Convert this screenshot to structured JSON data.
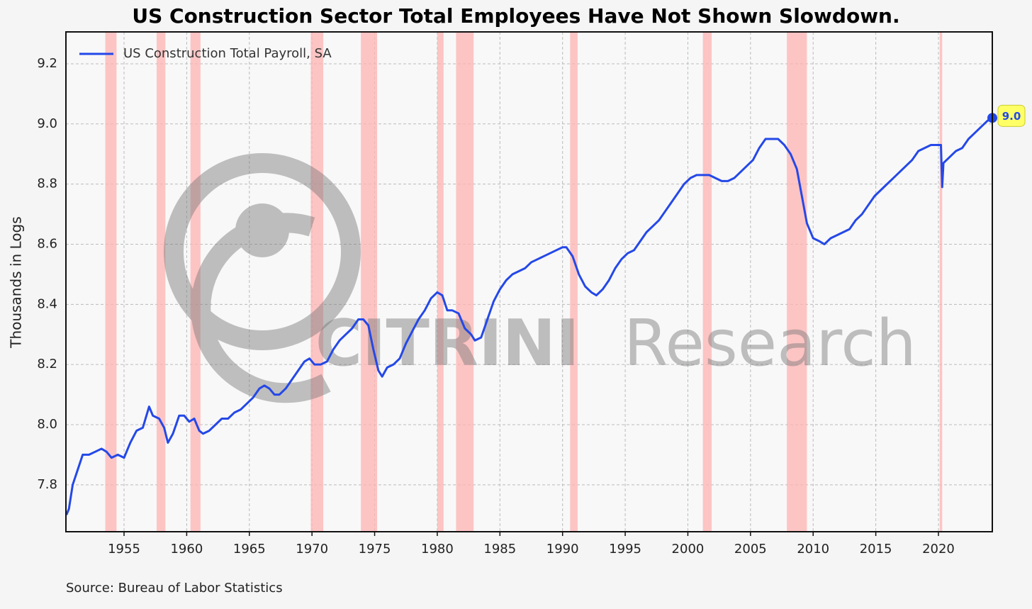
{
  "chart_data": {
    "type": "line",
    "title": "US Construction Sector Total Employees Have Not Shown Slowdown.",
    "ylabel": "Thousands in Logs",
    "source": "Source: Bureau of Labor Statistics",
    "watermark": {
      "bold": "CITRINI",
      "light": "Research"
    },
    "xlim": [
      1950.36,
      2024.3
    ],
    "ylim": [
      7.644,
      9.306
    ],
    "xticks": [
      1955,
      1960,
      1965,
      1970,
      1975,
      1980,
      1985,
      1990,
      1995,
      2000,
      2005,
      2010,
      2015,
      2020
    ],
    "yticks": [
      7.8,
      {
        "value": 8,
        "label": "8.0"
      },
      8.2,
      8.4,
      8.6,
      8.8,
      {
        "value": 9,
        "label": "9.0"
      },
      9.2
    ],
    "grid": true,
    "legend": "upper left",
    "recession_color": "#ffb3b3",
    "recessions": [
      [
        1953.5,
        1954.4
      ],
      [
        1957.6,
        1958.3
      ],
      [
        1960.3,
        1961.1
      ],
      [
        1969.9,
        1970.9
      ],
      [
        1973.9,
        1975.2
      ],
      [
        1980.0,
        1980.5
      ],
      [
        1981.5,
        1982.9
      ],
      [
        1990.6,
        1991.2
      ],
      [
        2001.2,
        2001.9
      ],
      [
        2007.9,
        2009.5
      ],
      [
        2020.1,
        2020.3
      ]
    ],
    "x": [
      1950.4,
      1950.6,
      1950.9,
      1951.3,
      1951.7,
      1952.2,
      1952.7,
      1953.2,
      1953.6,
      1954.0,
      1954.5,
      1955.0,
      1955.5,
      1956.0,
      1956.5,
      1957.0,
      1957.3,
      1957.8,
      1958.2,
      1958.5,
      1958.9,
      1959.4,
      1959.8,
      1960.2,
      1960.6,
      1961.0,
      1961.3,
      1961.8,
      1962.3,
      1962.8,
      1963.3,
      1963.8,
      1964.3,
      1964.8,
      1965.3,
      1965.8,
      1966.2,
      1966.6,
      1967.0,
      1967.4,
      1967.9,
      1968.4,
      1968.9,
      1969.4,
      1969.8,
      1970.2,
      1970.7,
      1971.2,
      1971.7,
      1972.2,
      1972.7,
      1973.2,
      1973.7,
      1974.1,
      1974.5,
      1974.9,
      1975.3,
      1975.6,
      1976.0,
      1976.5,
      1977.0,
      1977.5,
      1978.0,
      1978.5,
      1979.0,
      1979.5,
      1980.0,
      1980.4,
      1980.8,
      1981.2,
      1981.7,
      1982.2,
      1982.7,
      1983.0,
      1983.5,
      1984.0,
      1984.5,
      1985.0,
      1985.5,
      1986.0,
      1986.5,
      1987.0,
      1987.5,
      1988.0,
      1988.5,
      1989.0,
      1989.5,
      1990.0,
      1990.3,
      1990.8,
      1991.3,
      1991.8,
      1992.3,
      1992.7,
      1993.2,
      1993.7,
      1994.2,
      1994.7,
      1995.2,
      1995.7,
      1996.2,
      1996.7,
      1997.2,
      1997.7,
      1998.2,
      1998.7,
      1999.2,
      1999.7,
      2000.2,
      2000.7,
      2001.2,
      2001.7,
      2002.2,
      2002.7,
      2003.2,
      2003.7,
      2004.2,
      2004.7,
      2005.2,
      2005.7,
      2006.2,
      2006.7,
      2007.2,
      2007.7,
      2008.2,
      2008.7,
      2009.1,
      2009.5,
      2010.0,
      2010.5,
      2010.9,
      2011.4,
      2011.9,
      2012.4,
      2012.9,
      2013.4,
      2013.9,
      2014.4,
      2014.9,
      2015.4,
      2015.9,
      2016.4,
      2016.9,
      2017.4,
      2017.9,
      2018.4,
      2018.9,
      2019.4,
      2019.9,
      2020.2,
      2020.3,
      2020.4,
      2020.9,
      2021.4,
      2021.9,
      2022.4,
      2022.9,
      2023.4,
      2023.9,
      2024.3
    ],
    "series": [
      {
        "name": "US Construction Total Payroll, SA",
        "color": "#2448e8",
        "end_label": "9.0",
        "values": [
          7.7,
          7.72,
          7.8,
          7.85,
          7.9,
          7.9,
          7.91,
          7.92,
          7.91,
          7.89,
          7.9,
          7.89,
          7.94,
          7.98,
          7.99,
          8.06,
          8.03,
          8.02,
          7.99,
          7.94,
          7.97,
          8.03,
          8.03,
          8.01,
          8.02,
          7.98,
          7.97,
          7.98,
          8.0,
          8.02,
          8.02,
          8.04,
          8.05,
          8.07,
          8.09,
          8.12,
          8.13,
          8.12,
          8.1,
          8.1,
          8.12,
          8.15,
          8.18,
          8.21,
          8.22,
          8.2,
          8.2,
          8.21,
          8.25,
          8.28,
          8.3,
          8.32,
          8.35,
          8.35,
          8.33,
          8.25,
          8.18,
          8.16,
          8.19,
          8.2,
          8.22,
          8.27,
          8.31,
          8.35,
          8.38,
          8.42,
          8.44,
          8.43,
          8.38,
          8.38,
          8.37,
          8.32,
          8.3,
          8.28,
          8.29,
          8.35,
          8.41,
          8.45,
          8.48,
          8.5,
          8.51,
          8.52,
          8.54,
          8.55,
          8.56,
          8.57,
          8.58,
          8.59,
          8.59,
          8.56,
          8.5,
          8.46,
          8.44,
          8.43,
          8.45,
          8.48,
          8.52,
          8.55,
          8.57,
          8.58,
          8.61,
          8.64,
          8.66,
          8.68,
          8.71,
          8.74,
          8.77,
          8.8,
          8.82,
          8.83,
          8.83,
          8.83,
          8.82,
          8.81,
          8.81,
          8.82,
          8.84,
          8.86,
          8.88,
          8.92,
          8.95,
          8.95,
          8.95,
          8.93,
          8.9,
          8.85,
          8.76,
          8.67,
          8.62,
          8.61,
          8.6,
          8.62,
          8.63,
          8.64,
          8.65,
          8.68,
          8.7,
          8.73,
          8.76,
          8.78,
          8.8,
          8.82,
          8.84,
          8.86,
          8.88,
          8.91,
          8.92,
          8.93,
          8.93,
          8.93,
          8.79,
          8.87,
          8.89,
          8.91,
          8.92,
          8.95,
          8.97,
          8.99,
          9.01,
          9.02
        ]
      }
    ]
  }
}
